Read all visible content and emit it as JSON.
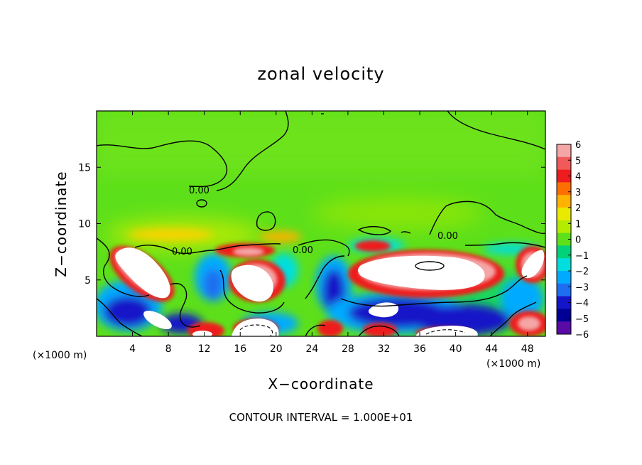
{
  "chart_data": {
    "type": "heatmap",
    "title": "zonal velocity",
    "xlabel": "X−coordinate",
    "ylabel": "Z−coordinate",
    "x_unit_left": "(×1000 m)",
    "x_unit_right": "(×1000 m)",
    "xlim": [
      0,
      50
    ],
    "ylim": [
      0,
      20
    ],
    "x_ticks": [
      4,
      8,
      12,
      16,
      20,
      24,
      28,
      32,
      36,
      40,
      44,
      48
    ],
    "y_ticks": [
      5,
      10,
      15
    ],
    "colorbar": {
      "min": -6,
      "max": 6,
      "ticks": [
        "6",
        "5",
        "4",
        "3",
        "2",
        "1",
        "0",
        "−1",
        "−2",
        "−3",
        "−4",
        "−5",
        "−6"
      ],
      "colors": [
        "#f4a6a6",
        "#f05a5a",
        "#ee1c1c",
        "#ff6f00",
        "#ffb300",
        "#eaea00",
        "#b4ec00",
        "#5de01a",
        "#00d27a",
        "#00dede",
        "#00aaff",
        "#1e6ef0",
        "#1414c8",
        "#000096",
        "#5a0aa5"
      ]
    },
    "contour_labels": [
      "0.00",
      "0.00",
      "0.00",
      "0.00"
    ],
    "contour_interval_text": "CONTOUR INTERVAL = 1.000E+01",
    "background_color": "#5de01a",
    "grid": false
  }
}
